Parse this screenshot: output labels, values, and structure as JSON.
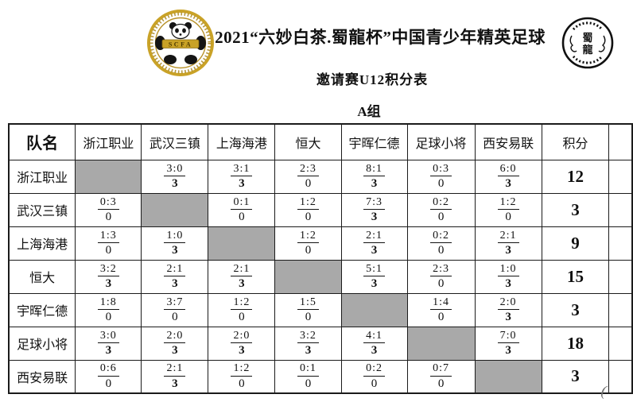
{
  "page": {
    "title_line": "2021“六妙白茶.蜀龍杯”中国青少年精英足球",
    "subtitle_line": "邀请赛U12积分表",
    "group_label": "A组",
    "corner_mark": "("
  },
  "logos": {
    "left": {
      "banner_text": "SCFA"
    },
    "right": {
      "char_top": "蜀",
      "char_bottom": "龍"
    }
  },
  "colors": {
    "grid": "#1b1b1b",
    "diagonal_fill": "#a9a9a9",
    "gold": "#c9a227",
    "text": "#111111"
  },
  "table": {
    "corner_header": "队名",
    "opponents": [
      "浙江职业",
      "武汉三镇",
      "上海海港",
      "恒大",
      "宇晖仁德",
      "足球小将",
      "西安易联"
    ],
    "points_header": "积分",
    "rows": [
      {
        "team": "浙江职业",
        "results": [
          null,
          {
            "score": "3:0",
            "pts": "3"
          },
          {
            "score": "3:1",
            "pts": "3"
          },
          {
            "score": "2:3",
            "pts": "0"
          },
          {
            "score": "8:1",
            "pts": "3"
          },
          {
            "score": "0:3",
            "pts": "0"
          },
          {
            "score": "6:0",
            "pts": "3"
          }
        ],
        "points": "12"
      },
      {
        "team": "武汉三镇",
        "results": [
          {
            "score": "0:3",
            "pts": "0"
          },
          null,
          {
            "score": "0:1",
            "pts": "0"
          },
          {
            "score": "1:2",
            "pts": "0"
          },
          {
            "score": "7:3",
            "pts": "3"
          },
          {
            "score": "0:2",
            "pts": "0"
          },
          {
            "score": "1:2",
            "pts": "0"
          }
        ],
        "points": "3"
      },
      {
        "team": "上海海港",
        "results": [
          {
            "score": "1:3",
            "pts": "0"
          },
          {
            "score": "1:0",
            "pts": "3"
          },
          null,
          {
            "score": "1:2",
            "pts": "0"
          },
          {
            "score": "2:1",
            "pts": "3"
          },
          {
            "score": "0:2",
            "pts": "0"
          },
          {
            "score": "2:1",
            "pts": "3"
          }
        ],
        "points": "9"
      },
      {
        "team": "恒大",
        "results": [
          {
            "score": "3:2",
            "pts": "3"
          },
          {
            "score": "2:1",
            "pts": "3"
          },
          {
            "score": "2:1",
            "pts": "3"
          },
          null,
          {
            "score": "5:1",
            "pts": "3"
          },
          {
            "score": "2:3",
            "pts": "0"
          },
          {
            "score": "1:0",
            "pts": "3"
          }
        ],
        "points": "15"
      },
      {
        "team": "宇晖仁德",
        "results": [
          {
            "score": "1:8",
            "pts": "0"
          },
          {
            "score": "3:7",
            "pts": "0"
          },
          {
            "score": "1:2",
            "pts": "0"
          },
          {
            "score": "1:5",
            "pts": "0"
          },
          null,
          {
            "score": "1:4",
            "pts": "0"
          },
          {
            "score": "2:0",
            "pts": "3"
          }
        ],
        "points": "3"
      },
      {
        "team": "足球小将",
        "results": [
          {
            "score": "3:0",
            "pts": "3"
          },
          {
            "score": "2:0",
            "pts": "3"
          },
          {
            "score": "2:0",
            "pts": "3"
          },
          {
            "score": "3:2",
            "pts": "3"
          },
          {
            "score": "4:1",
            "pts": "3"
          },
          null,
          {
            "score": "7:0",
            "pts": "3"
          }
        ],
        "points": "18"
      },
      {
        "team": "西安易联",
        "results": [
          {
            "score": "0:6",
            "pts": "0"
          },
          {
            "score": "2:1",
            "pts": "3"
          },
          {
            "score": "1:2",
            "pts": "0"
          },
          {
            "score": "0:1",
            "pts": "0"
          },
          {
            "score": "0:2",
            "pts": "0"
          },
          {
            "score": "0:7",
            "pts": "0"
          },
          null
        ],
        "points": "3"
      }
    ]
  }
}
